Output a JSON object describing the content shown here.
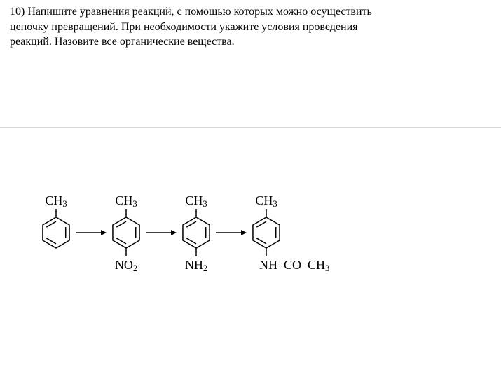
{
  "question": {
    "number": "10)",
    "text_line1": "Напишите уравнения реакций, с помощью которых можно осуществить",
    "text_line2": "цепочку превращений. При необходимости укажите условия проведения",
    "text_line3": "реакций. Назовите все органические вещества."
  },
  "molecules": [
    {
      "top_label": "CH₃",
      "bottom_label": null
    },
    {
      "top_label": "CH₃",
      "bottom_label": "NO₂"
    },
    {
      "top_label": "CH₃",
      "bottom_label": "NH₂"
    },
    {
      "top_label": "CH₃",
      "bottom_label": "NH–CO–CH₃"
    }
  ],
  "style": {
    "text_color": "#000000",
    "background_color": "#ffffff",
    "divider_color": "#d8d8d8",
    "font_family": "Times New Roman, serif",
    "question_fontsize": 16,
    "label_fontsize": 18,
    "stroke_color": "#000000",
    "stroke_width": 1.5,
    "ring_radius": 22,
    "molecule_spacing": 100,
    "arrow_len": 30
  }
}
